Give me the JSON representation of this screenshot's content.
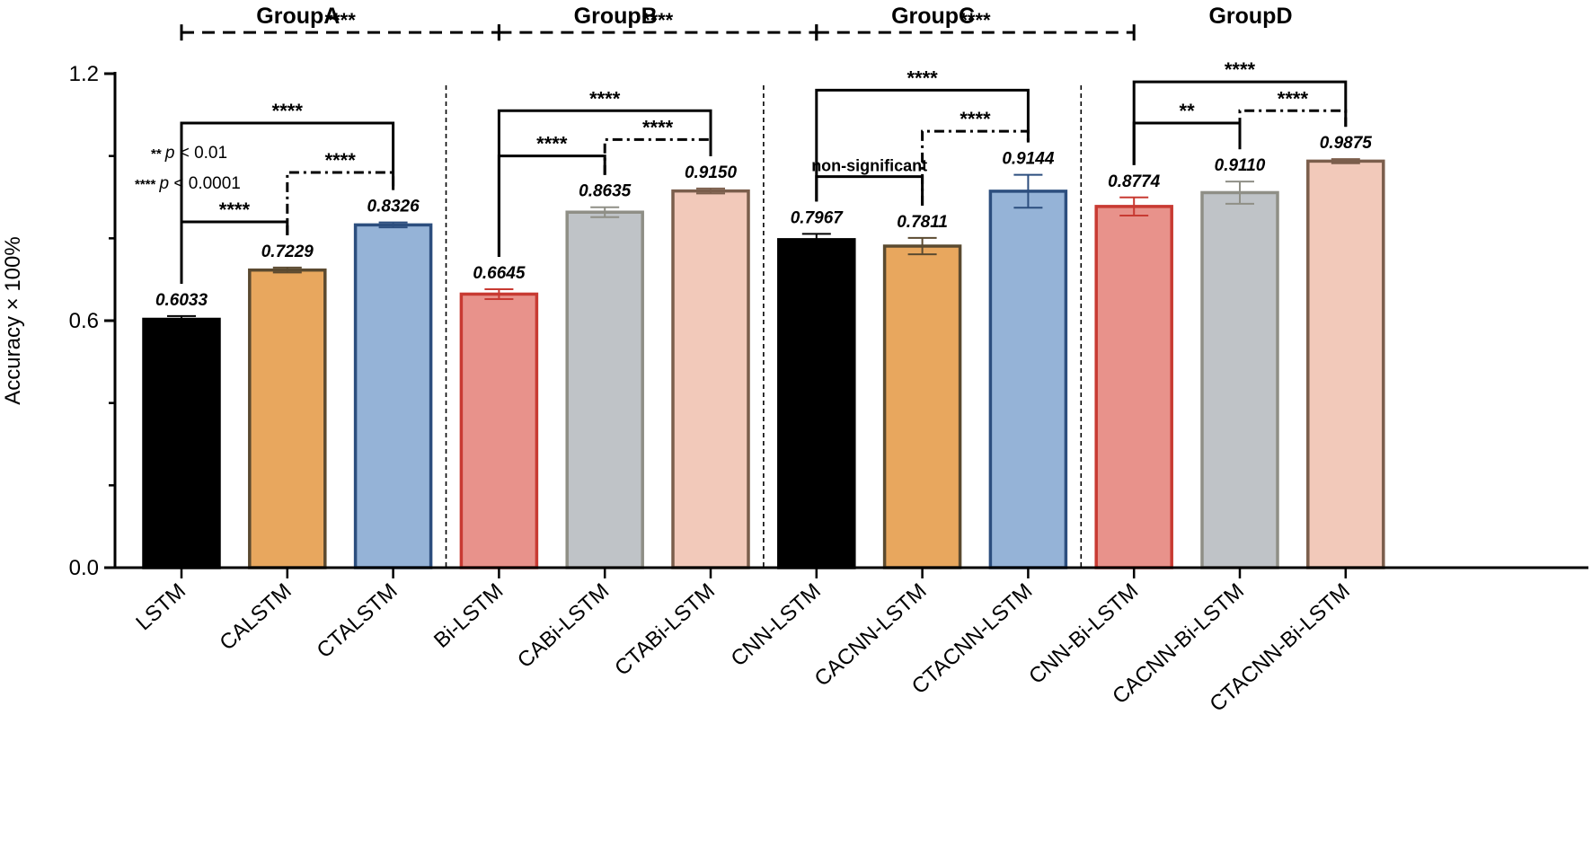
{
  "chart_data": {
    "type": "bar",
    "ylabel": "Accuracy × 100%",
    "xlabel": "",
    "ylim": [
      0,
      1.2
    ],
    "yticks": [
      "0.0",
      "0.6",
      "1.2"
    ],
    "groups": [
      "GroupA",
      "GroupB",
      "GroupC",
      "GroupD"
    ],
    "categories": [
      "LSTM",
      "CALSTM",
      "CTALSTM",
      "Bi-LSTM",
      "CABi-LSTM",
      "CTABi-LSTM",
      "CNN-LSTM",
      "CACNN-LSTM",
      "CTACNN-LSTM",
      "CNN-Bi-LSTM",
      "CACNN-Bi-LSTM",
      "CTACNN-Bi-LSTM"
    ],
    "values": [
      0.6033,
      0.7229,
      0.8326,
      0.6645,
      0.8635,
      0.915,
      0.7967,
      0.7811,
      0.9144,
      0.8774,
      0.911,
      0.9875
    ],
    "value_labels": [
      "0.6033",
      "0.7229",
      "0.8326",
      "0.6645",
      "0.8635",
      "0.9150",
      "0.7967",
      "0.7811",
      "0.9144",
      "0.8774",
      "0.9110",
      "0.9875"
    ],
    "errors": [
      0.008,
      0.006,
      0.006,
      0.012,
      0.012,
      0.006,
      0.014,
      0.02,
      0.04,
      0.022,
      0.027,
      0.005
    ],
    "colors": {
      "fill": [
        "#000000",
        "#E8A75E",
        "#95B3D7",
        "#E8928B",
        "#BFC3C7",
        "#F2C9BA",
        "#000000",
        "#E8A75E",
        "#95B3D7",
        "#E8928B",
        "#BFC3C7",
        "#F2C9BA"
      ],
      "stroke": [
        "#000000",
        "#5B4A30",
        "#2C4E7E",
        "#C83A32",
        "#8F8F86",
        "#7B5E4C",
        "#000000",
        "#5B4A30",
        "#2C4E7E",
        "#C83A32",
        "#8F8F86",
        "#7B5E4C"
      ]
    },
    "legend": [
      {
        "stars": "**",
        "text": "p < 0.01"
      },
      {
        "stars": "****",
        "text": "p < 0.0001"
      }
    ],
    "ns_label": "non-significant",
    "significance": [
      {
        "from": 0,
        "to": 3,
        "label": "****",
        "style": "dashed",
        "level": 1.3
      },
      {
        "from": 3,
        "to": 6,
        "label": "****",
        "style": "dashed",
        "level": 1.3
      },
      {
        "from": 6,
        "to": 9,
        "label": "****",
        "style": "dashed",
        "level": 1.3
      },
      {
        "from": 0,
        "to": 2,
        "label": "****",
        "style": "solid",
        "level": 1.08
      },
      {
        "from": 0,
        "to": 1,
        "label": "****",
        "style": "solid",
        "level": 0.84
      },
      {
        "from": 1,
        "to": 2,
        "label": "****",
        "style": "dashdot",
        "level": 0.96
      },
      {
        "from": 3,
        "to": 5,
        "label": "****",
        "style": "solid",
        "level": 1.11
      },
      {
        "from": 3,
        "to": 4,
        "label": "****",
        "style": "solid",
        "level": 1.0
      },
      {
        "from": 4,
        "to": 5,
        "label": "****",
        "style": "dashdot",
        "level": 1.04
      },
      {
        "from": 6,
        "to": 8,
        "label": "****",
        "style": "solid",
        "level": 1.16
      },
      {
        "from": 6,
        "to": 7,
        "label": "non-significant",
        "style": "solid",
        "level": 0.95
      },
      {
        "from": 7,
        "to": 8,
        "label": "****",
        "style": "dashdot",
        "level": 1.06
      },
      {
        "from": 9,
        "to": 11,
        "label": "****",
        "style": "solid",
        "level": 1.18
      },
      {
        "from": 9,
        "to": 10,
        "label": "**",
        "style": "solid",
        "level": 1.08
      },
      {
        "from": 10,
        "to": 11,
        "label": "****",
        "style": "dashdot",
        "level": 1.11
      }
    ]
  }
}
